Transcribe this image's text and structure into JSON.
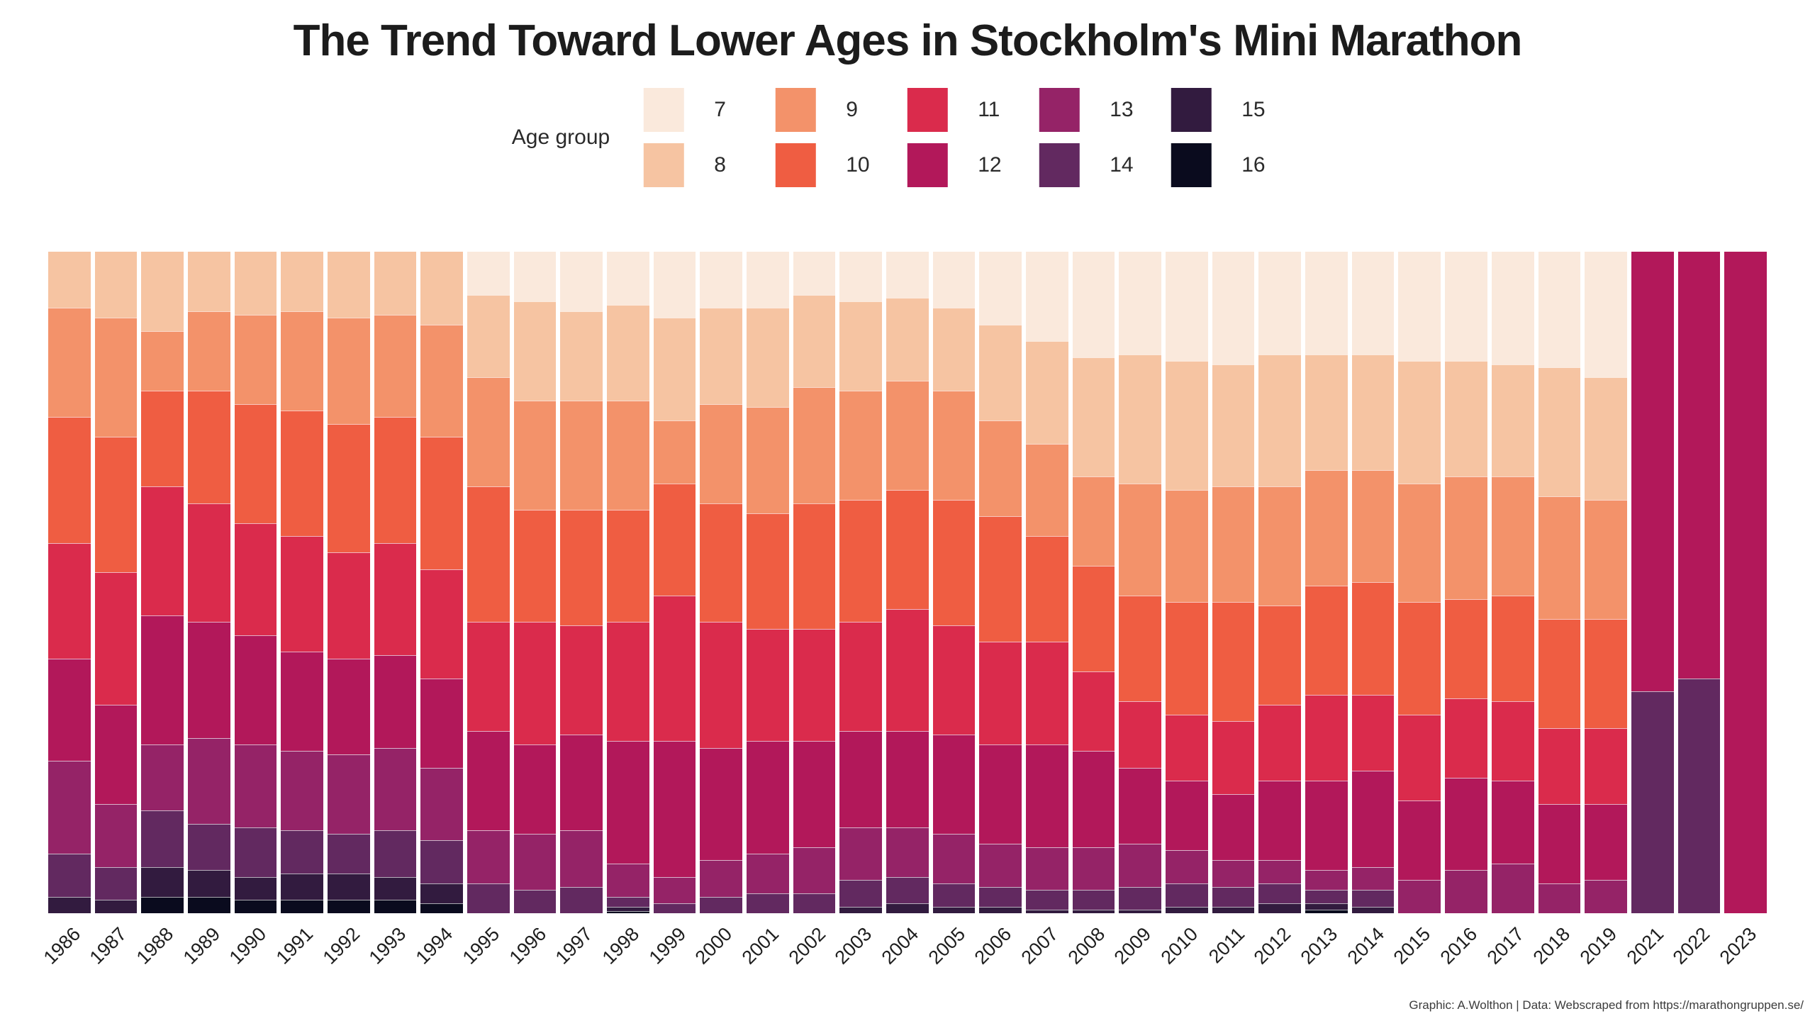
{
  "title": "The Trend Toward Lower Ages in Stockholm's Mini Marathon",
  "footer": "Graphic: A.Wolthon | Data: Webscraped from https://marathongruppen.se/",
  "legend": {
    "title": "Age group",
    "items": [
      {
        "label": "7",
        "color": "#fae9dc"
      },
      {
        "label": "8",
        "color": "#f6c4a2"
      },
      {
        "label": "9",
        "color": "#f3926a"
      },
      {
        "label": "10",
        "color": "#ef5d42"
      },
      {
        "label": "11",
        "color": "#da2b4c"
      },
      {
        "label": "12",
        "color": "#b2185a"
      },
      {
        "label": "13",
        "color": "#952367"
      },
      {
        "label": "14",
        "color": "#622960"
      },
      {
        "label": "15",
        "color": "#321b3f"
      },
      {
        "label": "16",
        "color": "#0a0b1e"
      }
    ]
  },
  "chart_data": {
    "type": "bar",
    "stacked": true,
    "normalized": "percent_of_year_total",
    "title": "The Trend Toward Lower Ages in Stockholm's Mini Marathon",
    "xlabel": "",
    "ylabel": "",
    "ylim": [
      0,
      100
    ],
    "grid": false,
    "axes_visible": false,
    "legend_position": "top-center",
    "legend_title": "Age group",
    "stack_order_top_to_bottom": [
      "7",
      "8",
      "9",
      "10",
      "11",
      "12",
      "13",
      "14",
      "15",
      "16"
    ],
    "note_missing_year": "2020 absent from x axis",
    "categories": [
      "1986",
      "1987",
      "1988",
      "1989",
      "1990",
      "1991",
      "1992",
      "1993",
      "1994",
      "1995",
      "1996",
      "1997",
      "1998",
      "1999",
      "2000",
      "2001",
      "2002",
      "2003",
      "2004",
      "2005",
      "2006",
      "2007",
      "2008",
      "2009",
      "2010",
      "2011",
      "2012",
      "2013",
      "2014",
      "2015",
      "2016",
      "2017",
      "2018",
      "2019",
      "2021",
      "2022",
      "2023"
    ],
    "series": [
      {
        "name": "7",
        "color": "#fae9dc",
        "values": [
          0,
          0,
          0,
          0,
          0,
          0,
          0,
          0,
          0,
          6.5,
          7.5,
          9,
          8,
          10,
          8.5,
          8.5,
          6.5,
          7.5,
          7,
          8.5,
          11,
          13.5,
          16,
          15.5,
          16.5,
          17,
          15.5,
          15.5,
          15.5,
          16.5,
          16.5,
          17,
          17.5,
          19,
          0,
          0,
          0
        ]
      },
      {
        "name": "8",
        "color": "#f6c4a2",
        "values": [
          8.5,
          10,
          12,
          9,
          9.5,
          9,
          10,
          9.5,
          11,
          12.5,
          15,
          13.5,
          14.5,
          15.5,
          14.5,
          15,
          14,
          13.5,
          12.5,
          12.5,
          14.5,
          15.5,
          18,
          19.5,
          19.5,
          18.5,
          20,
          17.5,
          17.5,
          18.5,
          17.5,
          17,
          19.5,
          18.5,
          0,
          0,
          0
        ]
      },
      {
        "name": "9",
        "color": "#f3926a",
        "values": [
          16.5,
          18,
          9,
          12,
          13.5,
          15,
          16,
          15.5,
          17,
          16.5,
          16.5,
          16.5,
          16.5,
          9.5,
          15,
          16,
          17.5,
          16.5,
          16.5,
          16.5,
          14.5,
          14,
          13.5,
          17,
          17,
          17.5,
          18,
          17.5,
          17,
          18,
          18.5,
          18,
          18.5,
          18,
          0,
          0,
          0
        ]
      },
      {
        "name": "10",
        "color": "#ef5d42",
        "values": [
          19,
          20.5,
          14.5,
          17,
          18,
          19,
          19.5,
          19,
          20,
          20.5,
          17,
          17.5,
          17,
          17,
          18,
          17.5,
          19,
          18.5,
          18,
          19,
          19,
          16,
          16,
          16,
          17,
          18,
          15,
          16.5,
          17,
          17,
          15,
          16,
          16.5,
          16.5,
          0,
          0,
          0
        ]
      },
      {
        "name": "11",
        "color": "#da2b4c",
        "values": [
          17.5,
          20,
          19.5,
          18,
          17,
          17.5,
          16,
          17,
          16.5,
          16.5,
          18.5,
          16.5,
          18,
          22,
          19,
          17,
          17,
          16.5,
          18.5,
          16.5,
          15.5,
          15.5,
          12,
          10,
          10,
          11,
          11.5,
          13,
          11.5,
          13,
          12,
          12,
          11.5,
          11.5,
          0,
          0,
          0
        ]
      },
      {
        "name": "12",
        "color": "#b2185a",
        "values": [
          15.5,
          15,
          19.5,
          17.5,
          16.5,
          15,
          14.5,
          14,
          13.5,
          15,
          13.5,
          14.5,
          18.5,
          20.5,
          17,
          17,
          16,
          14.5,
          14.5,
          15,
          15,
          15.5,
          14.5,
          11.5,
          10.5,
          10,
          12,
          13.5,
          14.5,
          12,
          14,
          12.5,
          12,
          11.5,
          66.5,
          64.5,
          100
        ]
      },
      {
        "name": "13",
        "color": "#952367",
        "values": [
          14,
          9.5,
          10,
          13,
          12.5,
          12,
          12,
          12.5,
          11,
          8,
          8.5,
          8.5,
          5,
          4,
          5.5,
          6,
          7,
          8,
          7.5,
          7.5,
          6.5,
          6.5,
          6.5,
          6.5,
          5,
          4,
          3.5,
          3,
          3.5,
          5,
          6.5,
          7.5,
          4.5,
          5,
          0,
          0,
          0
        ]
      },
      {
        "name": "14",
        "color": "#622960",
        "values": [
          6.5,
          5,
          8.5,
          7,
          7.5,
          6.5,
          6,
          7,
          6.5,
          4.5,
          3.5,
          4,
          1.5,
          1.5,
          2.5,
          3,
          3,
          4,
          4,
          3.5,
          3,
          3,
          3,
          3.5,
          3.5,
          3,
          3,
          2,
          2.5,
          0,
          0,
          0,
          0,
          0,
          33.5,
          35.5,
          0
        ]
      },
      {
        "name": "15",
        "color": "#321b3f",
        "values": [
          2.5,
          2,
          4.5,
          4,
          3.5,
          4,
          4,
          3.5,
          3,
          0,
          0,
          0,
          0.7,
          0,
          0,
          0,
          0,
          1,
          1.5,
          1,
          1,
          0.5,
          0.5,
          0.5,
          1,
          1,
          1.5,
          1,
          1,
          0,
          0,
          0,
          0,
          0,
          0,
          0,
          0
        ]
      },
      {
        "name": "16",
        "color": "#0a0b1e",
        "values": [
          0,
          0,
          2.5,
          2.5,
          2,
          2,
          2,
          2,
          1.5,
          0,
          0,
          0,
          0.3,
          0,
          0,
          0,
          0,
          0,
          0,
          0,
          0,
          0,
          0,
          0,
          0,
          0,
          0,
          0.5,
          0,
          0,
          0,
          0,
          0,
          0,
          0,
          0,
          0
        ]
      }
    ]
  }
}
